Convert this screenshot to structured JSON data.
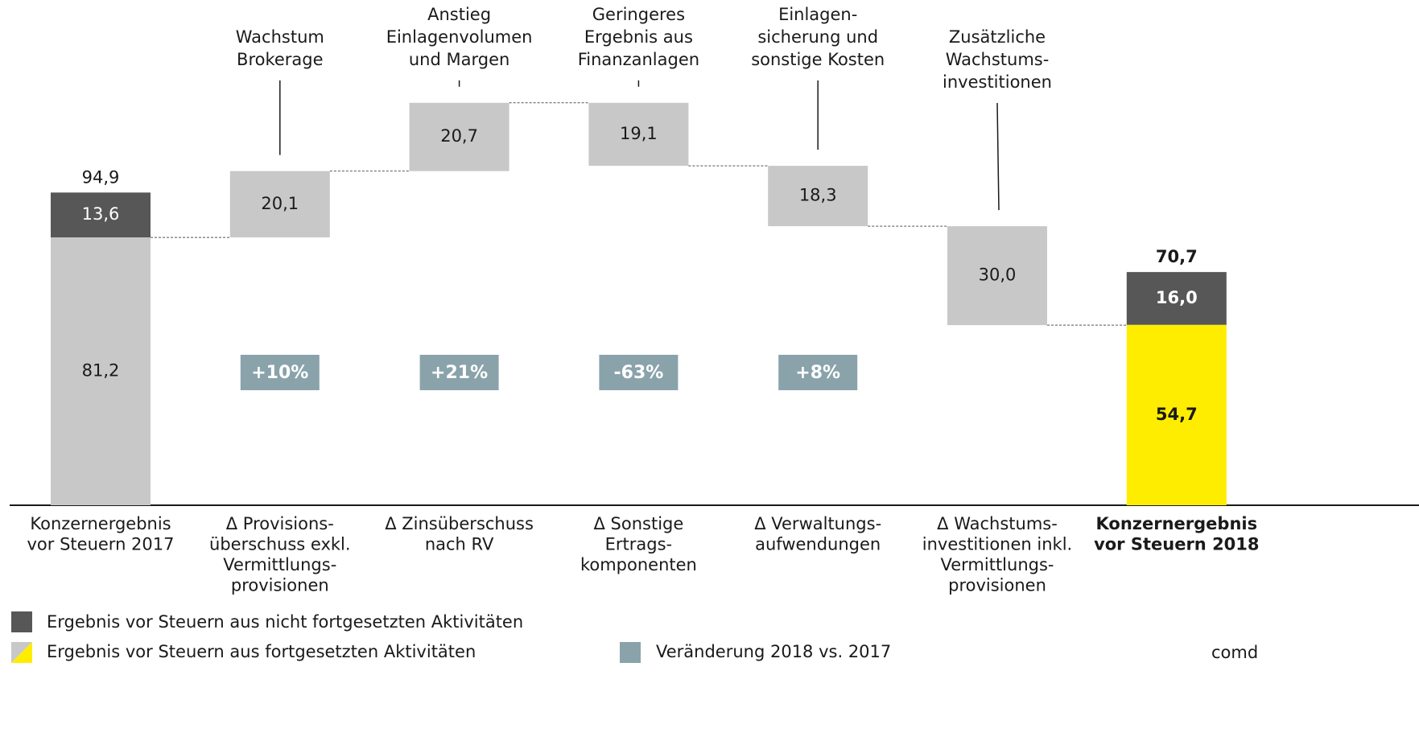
{
  "chart_data": {
    "type": "waterfall",
    "categories": [
      "Konzernergebnis\nvor Steuern 2017",
      "Δ Provisions-\nüberschuss exkl.\nVermittlungs-\nprovisionen",
      "Δ Zinsüberschuss\nnach RV",
      "Δ Sonstige\nErtrags-\nkomponenten",
      "Δ Verwaltungs-\naufwendungen",
      "Δ Wachstums-\ninvestitionen inkl.\nVermittlungs-\nprovisionen",
      "Konzernergebnis\nvor Steuern 2018"
    ],
    "annotations": [
      null,
      "Wachstum\nBrokerage",
      "Anstieg\nEinlagenvolumen\nund Margen",
      "Geringeres\nErgebnis aus\nFinanzanlagen",
      "Einlagen-\nsicherung und\nsonstige Kosten",
      "Zusätzliche\nWachstums-\ninvestitionen",
      null
    ],
    "continuing": {
      "name": "Ergebnis vor Steuern aus fortgesetzten Aktivitäten",
      "colors": [
        "#c8c8c8",
        null,
        null,
        null,
        null,
        null,
        "#ffed00"
      ],
      "values": [
        81.2,
        null,
        null,
        null,
        null,
        null,
        54.7
      ],
      "value_labels": [
        "81,2",
        null,
        null,
        null,
        null,
        null,
        "54,7"
      ]
    },
    "discontinued": {
      "name": "Ergebnis vor Steuern aus nicht fortgesetzten Aktivitäten",
      "color": "#575757",
      "values": [
        13.6,
        null,
        null,
        null,
        null,
        null,
        16.0
      ],
      "value_labels": [
        "13,6",
        null,
        null,
        null,
        null,
        null,
        "16,0"
      ]
    },
    "deltas": {
      "color": "#c8c8c8",
      "values": [
        null,
        20.1,
        20.7,
        -19.1,
        -18.3,
        -30.0,
        null
      ],
      "value_labels": [
        null,
        "20,1",
        "20,7",
        "19,1",
        "18,3",
        "30,0",
        null
      ]
    },
    "totals": {
      "values": [
        94.9,
        null,
        null,
        null,
        null,
        null,
        70.7
      ],
      "value_labels": [
        "94,9",
        null,
        null,
        null,
        null,
        null,
        "70,7"
      ]
    },
    "changes": {
      "name": "Veränderung 2018 vs. 2017",
      "color": "#8aa3ab",
      "values": [
        null,
        10,
        21,
        -63,
        8,
        null,
        null
      ],
      "value_labels": [
        null,
        "+10%",
        "+21%",
        "-63%",
        "+8%",
        null,
        null
      ]
    },
    "source": "comd"
  }
}
